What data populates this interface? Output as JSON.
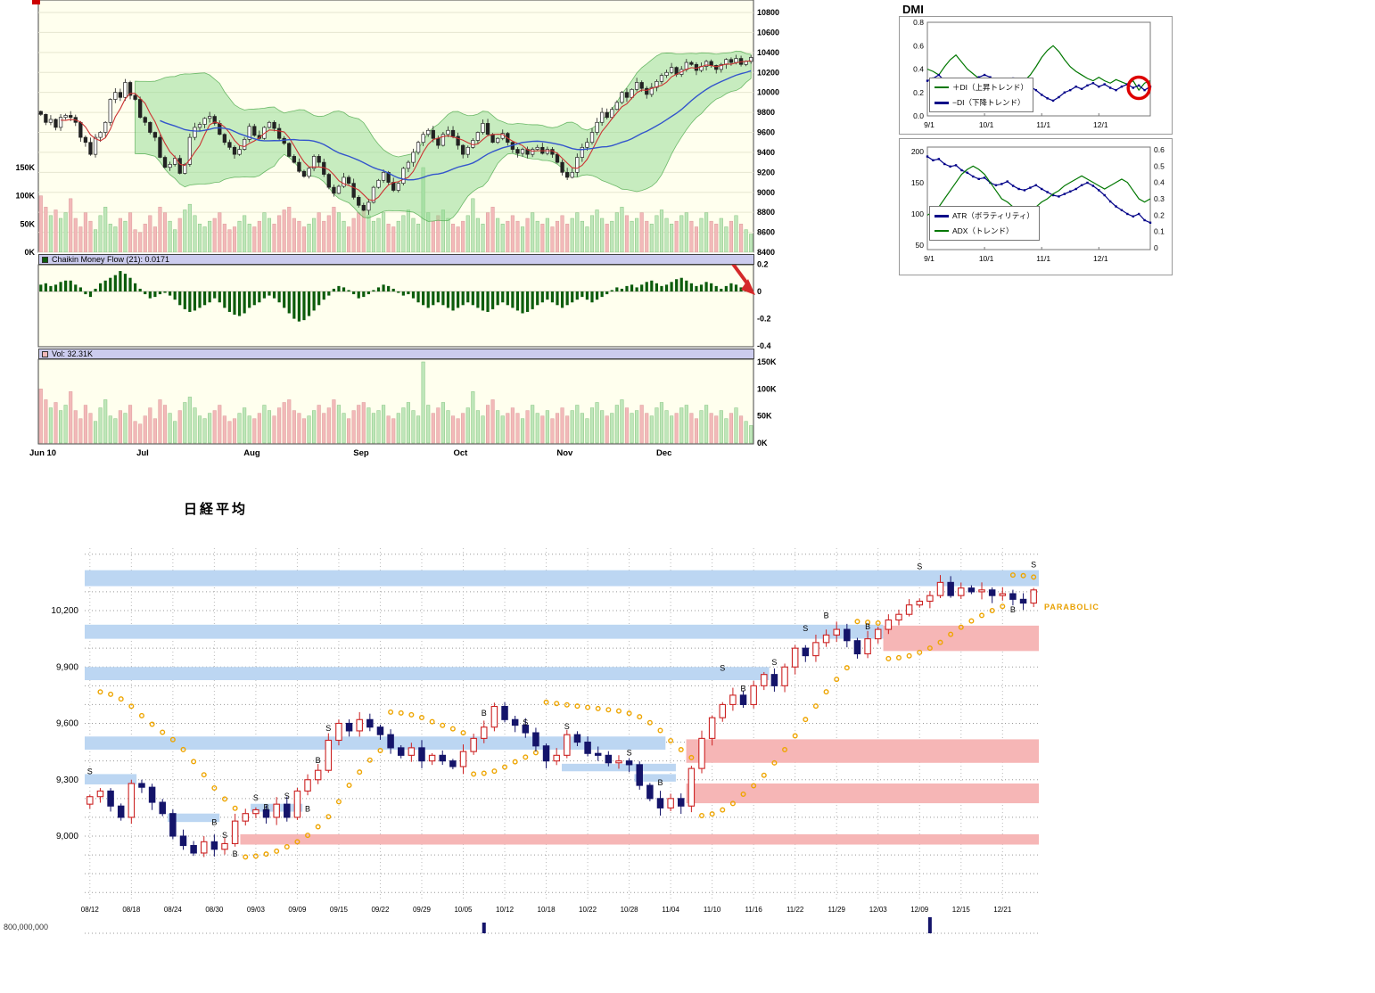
{
  "colors": {
    "accent_red": "#cc2222",
    "bollinger_fill": "#8fd98f",
    "ma_fast_red": "#cc3333",
    "ma_slow_blue": "#3355cc",
    "cmf_bar_green": "#0c5c0c",
    "vol_up_green": "#bfe6ba",
    "vol_down_pink": "#f2b9b9",
    "band_blue": "#bcd6f2",
    "band_pink": "#f6b6b6",
    "sar_orange": "#eea500",
    "candle_down_navy": "#14146a",
    "panel_bg": "#ffffee",
    "header_bg": "#ccccee"
  },
  "panels": {
    "cmf": {
      "label": "Chaikin Money Flow (21): 0.0171"
    },
    "vol": {
      "label": "Vol: 32.31K"
    }
  },
  "dmi": {
    "title": "DMI",
    "legend_plus": "＋DI（上昇トレンド）",
    "legend_minus": "−DI（下降トレンド）",
    "legend_atr": "ATR（ボラティリティ）",
    "legend_adx": "ADX（トレンド）"
  },
  "nikkei": {
    "title": "日経平均",
    "parabolic_label": "PARABOLIC",
    "volume_axis_label": "800,000,000"
  },
  "chart_data": [
    {
      "type": "candlestick",
      "name": "price-with-bollinger-and-volume",
      "x_labels": [
        "Jun 10",
        "Jul",
        "Aug",
        "Sep",
        "Oct",
        "Nov",
        "Dec"
      ],
      "month_start_index": [
        0,
        21,
        43,
        65,
        85,
        106,
        126
      ],
      "ylim": [
        8400,
        10925
      ],
      "y_ticks": [
        10800,
        10600,
        10400,
        10200,
        10000,
        9800,
        9600,
        9400,
        9200,
        9000,
        8800,
        8600,
        8400
      ],
      "volume_ticks_k": [
        150,
        100,
        50,
        0
      ],
      "overlays": [
        "bollinger(20,2)",
        "sma(5) red",
        "sma(25) blue"
      ],
      "closes": [
        9780,
        9700,
        9730,
        9650,
        9750,
        9770,
        9750,
        9700,
        9550,
        9500,
        9380,
        9550,
        9600,
        9700,
        9930,
        10000,
        9950,
        10100,
        9970,
        9930,
        9750,
        9700,
        9600,
        9550,
        9350,
        9250,
        9280,
        9340,
        9190,
        9280,
        9550,
        9650,
        9680,
        9740,
        9760,
        9690,
        9580,
        9500,
        9450,
        9380,
        9430,
        9530,
        9660,
        9570,
        9540,
        9650,
        9700,
        9640,
        9540,
        9490,
        9360,
        9300,
        9210,
        9160,
        9240,
        9360,
        9300,
        9180,
        9050,
        8990,
        9060,
        9150,
        9090,
        8950,
        8870,
        8820,
        8900,
        9050,
        9120,
        9200,
        9100,
        9020,
        9090,
        9240,
        9300,
        9400,
        9500,
        9580,
        9620,
        9540,
        9470,
        9580,
        9620,
        9560,
        9470,
        9380,
        9450,
        9520,
        9600,
        9690,
        9580,
        9500,
        9540,
        9590,
        9500,
        9430,
        9390,
        9430,
        9380,
        9430,
        9450,
        9390,
        9430,
        9380,
        9300,
        9200,
        9150,
        9200,
        9350,
        9450,
        9500,
        9600,
        9700,
        9800,
        9750,
        9830,
        9900,
        10000,
        9950,
        10030,
        10100,
        10040,
        9980,
        10050,
        10110,
        10170,
        10200,
        10250,
        10180,
        10230,
        10300,
        10280,
        10220,
        10260,
        10310,
        10270,
        10230,
        10280,
        10330,
        10300,
        10340,
        10280,
        10310,
        10350
      ],
      "volumes_k": [
        100,
        80,
        65,
        75,
        60,
        70,
        95,
        60,
        45,
        70,
        55,
        40,
        65,
        80,
        50,
        45,
        60,
        55,
        70,
        40,
        35,
        50,
        65,
        45,
        80,
        70,
        55,
        40,
        60,
        75,
        85,
        65,
        50,
        45,
        55,
        60,
        70,
        50,
        40,
        45,
        55,
        65,
        50,
        45,
        55,
        70,
        60,
        50,
        65,
        75,
        80,
        60,
        55,
        45,
        50,
        60,
        70,
        55,
        65,
        80,
        70,
        55,
        45,
        60,
        70,
        75,
        65,
        55,
        60,
        70,
        50,
        45,
        55,
        65,
        75,
        60,
        50,
        150,
        70,
        55,
        65,
        75,
        60,
        50,
        45,
        55,
        65,
        95,
        60,
        50,
        70,
        80,
        60,
        50,
        55,
        65,
        55,
        45,
        60,
        70,
        55,
        50,
        60,
        45,
        55,
        65,
        50,
        60,
        70,
        55,
        45,
        65,
        75,
        60,
        50,
        55,
        70,
        80,
        65,
        55,
        60,
        70,
        55,
        50,
        65,
        75,
        60,
        50,
        55,
        65,
        70,
        55,
        45,
        60,
        70,
        55,
        50,
        60,
        45,
        55,
        65,
        50,
        40,
        32.31
      ]
    },
    {
      "type": "bar",
      "name": "chaikin-money-flow",
      "period": 21,
      "current_value": 0.0171,
      "ylim": [
        -0.45,
        0.25
      ],
      "y_ticks": [
        0.2,
        0,
        -0.2,
        -0.4
      ],
      "values": [
        0.05,
        0.06,
        0.04,
        0.05,
        0.07,
        0.08,
        0.08,
        0.05,
        0.03,
        -0.02,
        -0.04,
        0.02,
        0.06,
        0.08,
        0.1,
        0.12,
        0.15,
        0.13,
        0.1,
        0.06,
        0.02,
        -0.02,
        -0.05,
        -0.04,
        -0.02,
        -0.01,
        -0.03,
        -0.06,
        -0.1,
        -0.13,
        -0.15,
        -0.14,
        -0.12,
        -0.1,
        -0.08,
        -0.05,
        -0.08,
        -0.12,
        -0.15,
        -0.17,
        -0.18,
        -0.16,
        -0.12,
        -0.1,
        -0.08,
        -0.05,
        -0.03,
        -0.05,
        -0.08,
        -0.12,
        -0.16,
        -0.2,
        -0.22,
        -0.21,
        -0.18,
        -0.14,
        -0.1,
        -0.06,
        -0.03,
        0.02,
        0.04,
        0.03,
        0.01,
        -0.02,
        -0.05,
        -0.04,
        -0.02,
        0.01,
        0.03,
        0.05,
        0.04,
        0.02,
        -0.01,
        -0.03,
        -0.02,
        -0.05,
        -0.08,
        -0.1,
        -0.12,
        -0.1,
        -0.08,
        -0.1,
        -0.12,
        -0.14,
        -0.12,
        -0.1,
        -0.08,
        -0.1,
        -0.12,
        -0.14,
        -0.15,
        -0.13,
        -0.1,
        -0.08,
        -0.1,
        -0.12,
        -0.14,
        -0.16,
        -0.15,
        -0.13,
        -0.1,
        -0.08,
        -0.06,
        -0.08,
        -0.1,
        -0.12,
        -0.1,
        -0.08,
        -0.06,
        -0.04,
        -0.06,
        -0.08,
        -0.06,
        -0.04,
        -0.02,
        0.01,
        0.03,
        0.02,
        0.04,
        0.05,
        0.03,
        0.05,
        0.07,
        0.08,
        0.06,
        0.04,
        0.05,
        0.07,
        0.09,
        0.1,
        0.08,
        0.06,
        0.04,
        0.05,
        0.07,
        0.06,
        0.04,
        0.02,
        0.04,
        0.06,
        0.05,
        0.03,
        0.02,
        0.0171
      ]
    },
    {
      "type": "bar",
      "name": "volume-panel",
      "current_k": 32.31,
      "ylim_k": [
        0,
        158
      ],
      "y_ticks_k": [
        150,
        100,
        50,
        0
      ],
      "note": "same daily volume series as chart_data[0].volumes_k"
    },
    {
      "type": "line",
      "name": "dmi",
      "x_labels": [
        "9/1",
        "10/1",
        "11/1",
        "12/1"
      ],
      "x_tick_index": [
        0,
        10,
        20,
        30
      ],
      "ylim": [
        0,
        0.8
      ],
      "y_ticks": [
        0.8,
        0.6,
        0.4,
        0.2,
        0.0
      ],
      "series": [
        {
          "name": "＋DI（上昇トレンド）",
          "color": "#007700",
          "values": [
            0.4,
            0.38,
            0.35,
            0.42,
            0.48,
            0.52,
            0.46,
            0.4,
            0.36,
            0.32,
            0.3,
            0.28,
            0.26,
            0.3,
            0.28,
            0.25,
            0.27,
            0.3,
            0.35,
            0.42,
            0.5,
            0.56,
            0.6,
            0.55,
            0.48,
            0.42,
            0.38,
            0.35,
            0.32,
            0.3,
            0.33,
            0.3,
            0.28,
            0.31,
            0.29,
            0.27,
            0.3,
            0.22,
            0.28,
            0.3
          ]
        },
        {
          "name": "−DI（下降トレンド）",
          "color": "#000088",
          "marker": true,
          "values": [
            0.3,
            0.32,
            0.35,
            0.3,
            0.25,
            0.22,
            0.25,
            0.28,
            0.3,
            0.33,
            0.35,
            0.33,
            0.3,
            0.28,
            0.3,
            0.32,
            0.3,
            0.28,
            0.25,
            0.22,
            0.18,
            0.15,
            0.13,
            0.16,
            0.2,
            0.22,
            0.25,
            0.23,
            0.26,
            0.28,
            0.25,
            0.27,
            0.24,
            0.22,
            0.25,
            0.27,
            0.24,
            0.26,
            0.22,
            0.25
          ]
        }
      ],
      "annotation_circle": {
        "index": 37,
        "value": 0.24
      }
    },
    {
      "type": "line",
      "name": "atr-adx",
      "x_labels": [
        "9/1",
        "10/1",
        "11/1",
        "12/1"
      ],
      "x_tick_index": [
        0,
        10,
        20,
        30
      ],
      "left_ylim": [
        45,
        205
      ],
      "left_y_ticks": [
        200,
        150,
        100,
        50
      ],
      "right_ylim": [
        0,
        0.62
      ],
      "right_y_ticks": [
        0.6,
        0.5,
        0.4,
        0.3,
        0.2,
        0.1,
        0
      ],
      "series": [
        {
          "name": "ATR（ボラティリティ）",
          "axis": "left",
          "color": "#000088",
          "marker": true,
          "values": [
            192,
            186,
            188,
            180,
            176,
            178,
            170,
            166,
            160,
            156,
            158,
            150,
            146,
            148,
            152,
            145,
            140,
            138,
            142,
            146,
            140,
            135,
            130,
            128,
            132,
            136,
            140,
            146,
            150,
            145,
            138,
            130,
            120,
            112,
            106,
            100,
            96,
            100,
            90,
            86
          ]
        },
        {
          "name": "ADX（トレンド）",
          "axis": "right",
          "color": "#007700",
          "values": [
            0.2,
            0.22,
            0.25,
            0.3,
            0.35,
            0.4,
            0.45,
            0.48,
            0.5,
            0.48,
            0.45,
            0.4,
            0.35,
            0.3,
            0.28,
            0.25,
            0.22,
            0.2,
            0.22,
            0.25,
            0.28,
            0.3,
            0.33,
            0.35,
            0.38,
            0.4,
            0.42,
            0.44,
            0.42,
            0.4,
            0.38,
            0.36,
            0.38,
            0.4,
            0.42,
            0.4,
            0.35,
            0.3,
            0.28,
            0.3
          ]
        }
      ]
    },
    {
      "type": "candlestick",
      "name": "nikkei-parabolic",
      "title": "日経平均",
      "x_labels": [
        "08/12",
        "08/18",
        "08/24",
        "08/30",
        "09/03",
        "09/09",
        "09/15",
        "09/22",
        "09/29",
        "10/05",
        "10/12",
        "10/18",
        "10/22",
        "10/28",
        "11/04",
        "11/10",
        "11/16",
        "11/22",
        "11/29",
        "12/03",
        "12/09",
        "12/15",
        "12/21"
      ],
      "x_tick_day": [
        0,
        4,
        8,
        12,
        16,
        20,
        24,
        28,
        32,
        36,
        40,
        44,
        48,
        52,
        56,
        60,
        64,
        68,
        72,
        76,
        80,
        84,
        88
      ],
      "ylim": [
        8650,
        10530
      ],
      "y_ticks": [
        10200,
        9900,
        9600,
        9300,
        9000
      ],
      "grid_step": 100,
      "sar_seed": 9780,
      "closes": [
        9210,
        9240,
        9160,
        9100,
        9280,
        9260,
        9180,
        9120,
        9000,
        8950,
        8910,
        8970,
        8930,
        8960,
        9080,
        9120,
        9140,
        9100,
        9170,
        9100,
        9240,
        9300,
        9350,
        9510,
        9600,
        9560,
        9620,
        9580,
        9540,
        9470,
        9430,
        9470,
        9400,
        9430,
        9400,
        9370,
        9450,
        9520,
        9580,
        9690,
        9620,
        9590,
        9550,
        9480,
        9400,
        9430,
        9540,
        9500,
        9440,
        9430,
        9390,
        9400,
        9380,
        9270,
        9200,
        9150,
        9200,
        9160,
        9360,
        9520,
        9630,
        9700,
        9750,
        9700,
        9800,
        9860,
        9800,
        9900,
        10000,
        9960,
        10030,
        10070,
        10100,
        10040,
        9970,
        10050,
        10100,
        10150,
        10180,
        10230,
        10250,
        10280,
        10350,
        10280,
        10320,
        10300,
        10310,
        10280,
        10290,
        10260,
        10240,
        10310
      ],
      "zones": [
        [
          0,
          92,
          10330,
          10415,
          "blue"
        ],
        [
          0,
          77,
          10050,
          10125,
          "blue"
        ],
        [
          77,
          92,
          9985,
          10120,
          "pink"
        ],
        [
          0,
          66,
          9830,
          9900,
          "blue"
        ],
        [
          0,
          56,
          9460,
          9530,
          "blue"
        ],
        [
          58,
          92,
          9390,
          9515,
          "pink"
        ],
        [
          0,
          5,
          9275,
          9330,
          "blue"
        ],
        [
          58,
          92,
          9175,
          9280,
          "pink"
        ],
        [
          15,
          92,
          8955,
          9010,
          "pink"
        ],
        [
          8,
          13,
          9075,
          9120,
          "blue"
        ],
        [
          16,
          21,
          9130,
          9172,
          "blue"
        ],
        [
          46,
          57,
          9345,
          9385,
          "blue"
        ],
        [
          53,
          57,
          9290,
          9330,
          "blue"
        ]
      ],
      "markers": [
        {
          "d": 0,
          "p": 9330,
          "t": "S"
        },
        {
          "d": 12,
          "p": 9060,
          "t": "B"
        },
        {
          "d": 13,
          "p": 8990,
          "t": "S"
        },
        {
          "d": 14,
          "p": 8890,
          "t": "B"
        },
        {
          "d": 16,
          "p": 9190,
          "t": "S"
        },
        {
          "d": 17,
          "p": 9140,
          "t": "B"
        },
        {
          "d": 19,
          "p": 9200,
          "t": "S"
        },
        {
          "d": 21,
          "p": 9130,
          "t": "B"
        },
        {
          "d": 22,
          "p": 9390,
          "t": "B"
        },
        {
          "d": 23,
          "p": 9560,
          "t": "S"
        },
        {
          "d": 38,
          "p": 9640,
          "t": "B"
        },
        {
          "d": 42,
          "p": 9590,
          "t": "S"
        },
        {
          "d": 46,
          "p": 9570,
          "t": "S"
        },
        {
          "d": 52,
          "p": 9430,
          "t": "S"
        },
        {
          "d": 55,
          "p": 9270,
          "t": "B"
        },
        {
          "d": 61,
          "p": 9880,
          "t": "S"
        },
        {
          "d": 63,
          "p": 9770,
          "t": "B"
        },
        {
          "d": 66,
          "p": 9910,
          "t": "S"
        },
        {
          "d": 69,
          "p": 10090,
          "t": "S"
        },
        {
          "d": 71,
          "p": 10160,
          "t": "B"
        },
        {
          "d": 75,
          "p": 10100,
          "t": "B"
        },
        {
          "d": 80,
          "p": 10420,
          "t": "S"
        },
        {
          "d": 89,
          "p": 10190,
          "t": "B"
        },
        {
          "d": 91,
          "p": 10430,
          "t": "S"
        }
      ],
      "mini_bars": [
        {
          "d": 38,
          "h": 12
        },
        {
          "d": 81,
          "h": 18
        }
      ]
    }
  ]
}
